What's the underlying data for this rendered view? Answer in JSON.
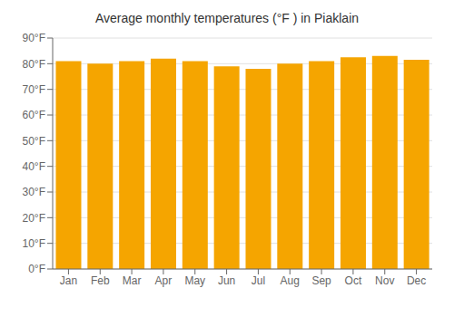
{
  "chart_data": {
    "type": "bar",
    "title": "Average monthly temperatures (°F ) in Piaklain",
    "categories": [
      "Jan",
      "Feb",
      "Mar",
      "Apr",
      "May",
      "Jun",
      "Jul",
      "Aug",
      "Sep",
      "Oct",
      "Nov",
      "Dec"
    ],
    "values": [
      81,
      80,
      81,
      82,
      81,
      79,
      78,
      80,
      81,
      82.5,
      83,
      81.5
    ],
    "color": "#F5A500",
    "ylim": [
      0,
      90
    ],
    "yticks": [
      {
        "value": 0,
        "label": "0°F"
      },
      {
        "value": 10,
        "label": "10°F"
      },
      {
        "value": 20,
        "label": "20°F"
      },
      {
        "value": 30,
        "label": "30°F"
      },
      {
        "value": 40,
        "label": "40°F"
      },
      {
        "value": 50,
        "label": "50°F"
      },
      {
        "value": 60,
        "label": "60°F"
      },
      {
        "value": 70,
        "label": "70°F"
      },
      {
        "value": 80,
        "label": "80°F"
      },
      {
        "value": 90,
        "label": "90°F"
      }
    ],
    "grid": true
  }
}
